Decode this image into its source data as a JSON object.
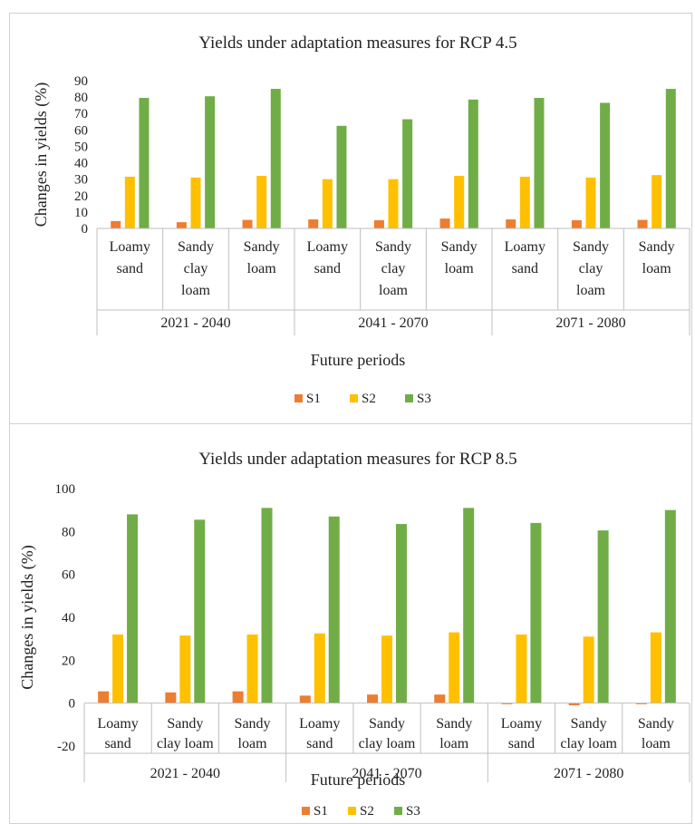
{
  "colors": {
    "S1": "#ed7d31",
    "S2": "#ffc000",
    "S3": "#70ad47"
  },
  "chart_data": [
    {
      "type": "bar",
      "title": "Yields under adaptation measures for RCP 4.5",
      "xlabel": "Future periods",
      "ylabel": "Changes in yields (%)",
      "ylim": [
        0,
        90
      ],
      "yticks": [
        0,
        10,
        20,
        30,
        40,
        50,
        60,
        70,
        80,
        90
      ],
      "grid": false,
      "legend_position": "bottom",
      "groups": [
        "2021 - 2040",
        "2041 - 2070",
        "2071 - 2080"
      ],
      "categories": [
        [
          "Loamy",
          "sand"
        ],
        [
          "Sandy",
          "clay",
          "loam"
        ],
        [
          "Sandy",
          "loam"
        ],
        [
          "Loamy",
          "sand"
        ],
        [
          "Sandy",
          "clay",
          "loam"
        ],
        [
          "Sandy",
          "loam"
        ],
        [
          "Loamy",
          "sand"
        ],
        [
          "Sandy",
          "clay",
          "loam"
        ],
        [
          "Sandy",
          "loam"
        ]
      ],
      "series": [
        {
          "name": "S1",
          "values": [
            4.5,
            3.8,
            5.2,
            5.5,
            5.0,
            6.0,
            5.5,
            5.0,
            5.2
          ]
        },
        {
          "name": "S2",
          "values": [
            31.5,
            31.0,
            32.0,
            30.0,
            30.0,
            32.0,
            31.5,
            31.0,
            32.5
          ]
        },
        {
          "name": "S3",
          "values": [
            79.5,
            80.5,
            85.0,
            62.5,
            66.5,
            78.5,
            79.5,
            76.5,
            85.0
          ]
        }
      ]
    },
    {
      "type": "bar",
      "title": "Yields under adaptation measures for RCP 8.5",
      "xlabel": "Future periods",
      "ylabel": "Changes in yields (%)",
      "ylim": [
        -20,
        100
      ],
      "yticks": [
        -20,
        0,
        20,
        40,
        60,
        80,
        100
      ],
      "grid": false,
      "legend_position": "bottom",
      "groups": [
        "2021 - 2040",
        "2041 - 2070",
        "2071 - 2080"
      ],
      "categories": [
        [
          "Loamy",
          "sand"
        ],
        [
          "Sandy",
          "clay loam"
        ],
        [
          "Sandy",
          "loam"
        ],
        [
          "Loamy",
          "sand"
        ],
        [
          "Sandy",
          "clay loam"
        ],
        [
          "Sandy",
          "loam"
        ],
        [
          "Loamy",
          "sand"
        ],
        [
          "Sandy",
          "clay loam"
        ],
        [
          "Sandy",
          "loam"
        ]
      ],
      "series": [
        {
          "name": "S1",
          "values": [
            5.5,
            5.0,
            5.5,
            3.5,
            4.0,
            4.0,
            -0.5,
            -1.0,
            -0.5
          ]
        },
        {
          "name": "S2",
          "values": [
            32.0,
            31.5,
            32.0,
            32.5,
            31.5,
            33.0,
            32.0,
            31.0,
            33.0
          ]
        },
        {
          "name": "S3",
          "values": [
            88.0,
            85.5,
            91.0,
            87.0,
            83.5,
            91.0,
            84.0,
            80.5,
            90.0
          ]
        }
      ]
    }
  ]
}
